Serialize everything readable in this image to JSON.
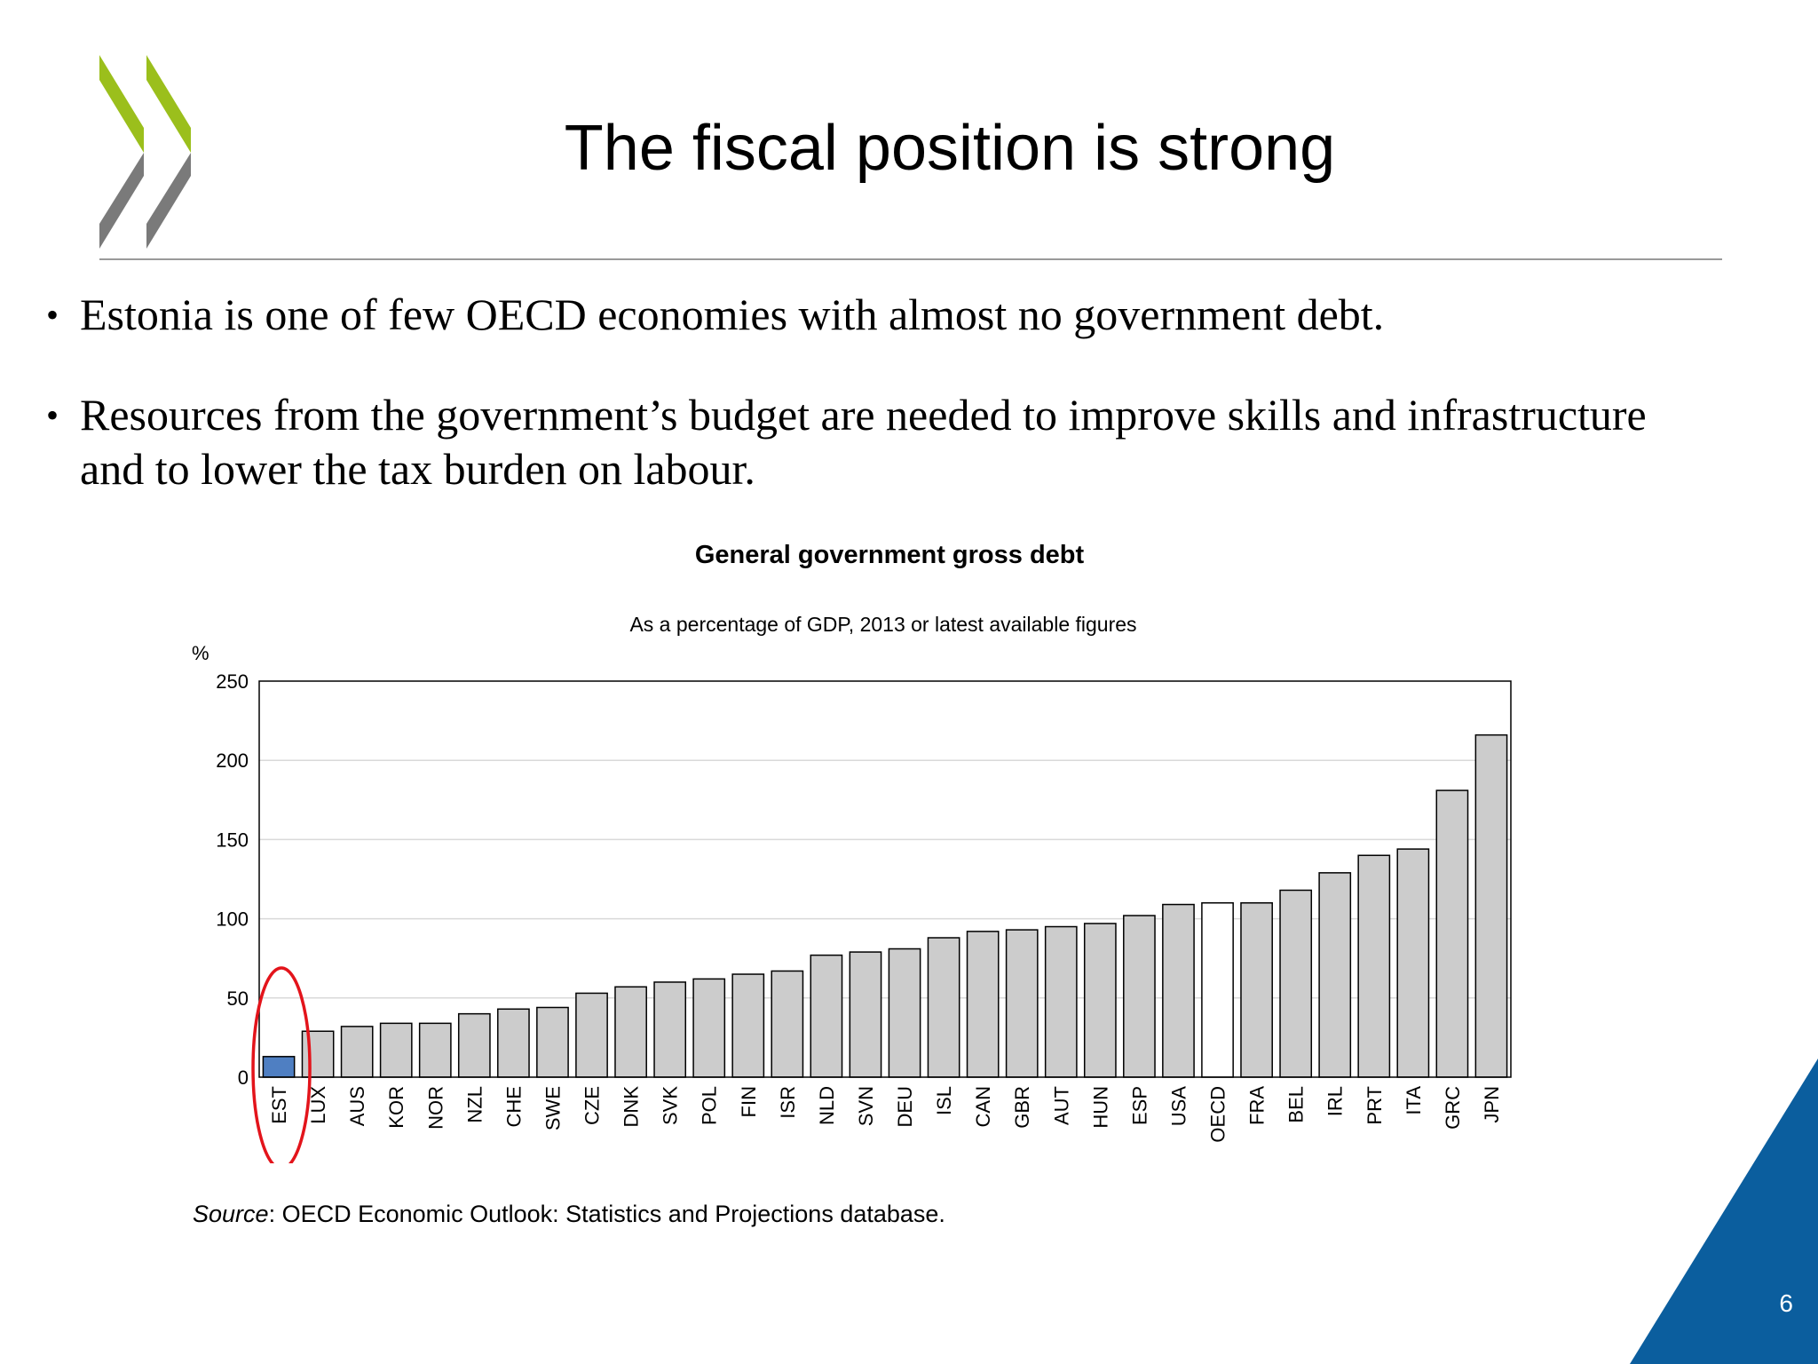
{
  "slide": {
    "title": "The fiscal position is strong",
    "bullets": [
      "Estonia is one of few OECD economies with almost no government debt.",
      "Resources from the government’s budget are needed to improve skills and infrastructure and to lower the tax burden on labour."
    ],
    "bullet_glyph": "•",
    "page_number": "6",
    "source_label": "Source",
    "source_text": ": OECD Economic Outlook: Statistics and Projections database.",
    "colors": {
      "logo_green": "#9bbf1c",
      "logo_grey": "#7a7a7a",
      "corner_blue": "#0b5e9e"
    }
  },
  "chart_data": {
    "type": "bar",
    "title": "General government gross debt",
    "subtitle": "As a percentage of GDP, 2013 or latest available figures",
    "ylabel": "%",
    "ylim": [
      0,
      250
    ],
    "yticks": [
      0,
      50,
      100,
      150,
      200,
      250
    ],
    "grid": true,
    "categories": [
      "EST",
      "LUX",
      "AUS",
      "KOR",
      "NOR",
      "NZL",
      "CHE",
      "SWE",
      "CZE",
      "DNK",
      "SVK",
      "POL",
      "FIN",
      "ISR",
      "NLD",
      "SVN",
      "DEU",
      "ISL",
      "CAN",
      "GBR",
      "AUT",
      "HUN",
      "ESP",
      "USA",
      "OECD",
      "FRA",
      "BEL",
      "IRL",
      "PRT",
      "ITA",
      "GRC",
      "JPN"
    ],
    "values": [
      13,
      29,
      32,
      34,
      34,
      40,
      43,
      44,
      53,
      57,
      60,
      62,
      65,
      67,
      77,
      79,
      81,
      88,
      92,
      93,
      95,
      97,
      102,
      109,
      110,
      110,
      118,
      129,
      140,
      144,
      181,
      216
    ],
    "highlight": {
      "EST": "#4f7fc2",
      "OECD": "#ffffff"
    },
    "bar_color": "#cccccc",
    "annotation": "red ellipse around EST"
  }
}
